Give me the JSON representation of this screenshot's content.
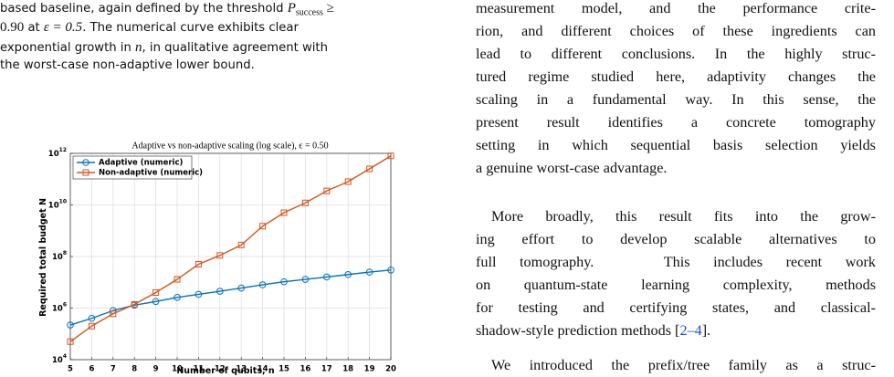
{
  "caption": {
    "lines": [
      [
        "based baseline, again defined by the threshold ",
        "P",
        "success",
        " ≥"
      ],
      [
        "0.90",
        " at ",
        "ε = 0.5",
        ".  The numerical curve exhibits clear"
      ],
      [
        "exponential growth in ",
        "n",
        ", in qualitative agreement with"
      ],
      [
        "the worst-case non-adaptive lower bound."
      ]
    ]
  },
  "body": {
    "paragraphs": [
      {
        "lines": [
          "measurement model, and the performance crite-",
          "rion, and different choices of these ingredients can",
          "lead to different conclusions. In the highly struc-",
          "tured regime studied here, adaptivity changes the",
          "scaling in a fundamental way. In this sense, the",
          "present result identifies a concrete tomography",
          "setting in which sequential basis selection yields",
          "a genuine worst-case advantage."
        ]
      },
      {
        "lines": [
          "More broadly, this result fits into the grow-",
          "ing effort to develop scalable alternatives to",
          "full tomography.   This includes recent work",
          "on quantum-state learning complexity, methods",
          "for testing and certifying states, and classical-",
          "shadow-style prediction methods ["
        ],
        "citation": "2–4",
        "after_citation": "]."
      },
      {
        "lines": [
          "We introduced the prefix/tree family as a struc-"
        ]
      }
    ]
  },
  "chart_data": {
    "type": "line",
    "title": "Adaptive vs non-adaptive scaling (log scale), ϵ = 0.50",
    "x_label": "Number of qubits, n",
    "y_label": "Required total budget N",
    "x": [
      5,
      6,
      7,
      8,
      9,
      10,
      11,
      12,
      13,
      14,
      15,
      16,
      17,
      18,
      19,
      20
    ],
    "series": [
      {
        "name": "Adaptive (numeric)",
        "color": "#0072BD",
        "marker": "circle",
        "values": [
          220000,
          400000,
          800000,
          1300000,
          1800000,
          2600000,
          3400000,
          4500000,
          6000000,
          8000000,
          10500000,
          13000000,
          16000000,
          20000000,
          25000000,
          30000000
        ]
      },
      {
        "name": "Non-adaptive (numeric)",
        "color": "#D95319",
        "marker": "square",
        "values": [
          50000,
          200000,
          600000,
          1400000,
          4000000,
          13000000,
          50000000,
          110000000,
          280000000,
          1500000000,
          5000000000,
          12000000000,
          35000000000,
          80000000000,
          250000000000,
          800000000000
        ]
      }
    ],
    "xlim": [
      5,
      20
    ],
    "xticks": [
      5,
      6,
      7,
      8,
      9,
      10,
      11,
      12,
      13,
      14,
      15,
      16,
      17,
      18,
      19,
      20
    ],
    "ylim": [
      10000,
      1000000000000
    ],
    "log_y": true,
    "yticks": [
      {
        "value": 10000,
        "label": "10^4"
      },
      {
        "value": 1000000,
        "label": "10^6"
      },
      {
        "value": 100000000,
        "label": "10^8"
      },
      {
        "value": 10000000000,
        "label": "10^10"
      },
      {
        "value": 1000000000000,
        "label": "10^12"
      }
    ],
    "grid": true,
    "legend": "top-left"
  }
}
